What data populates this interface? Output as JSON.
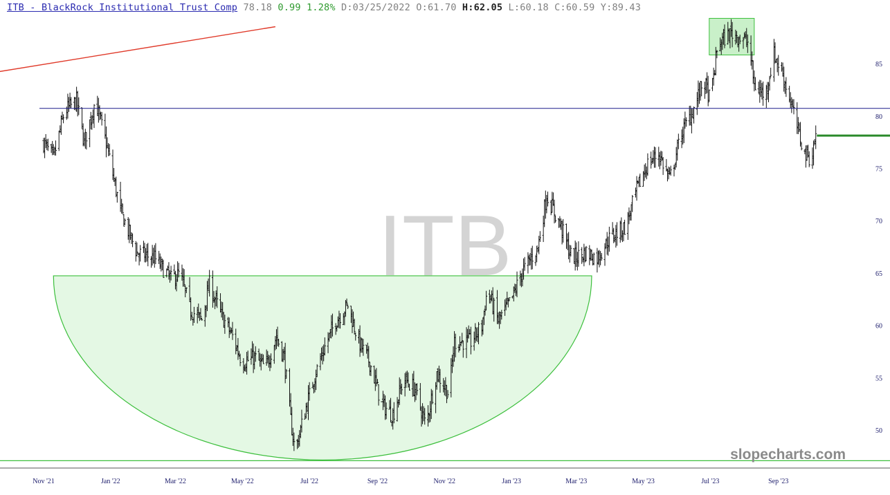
{
  "header": {
    "symbol": "ITB - BlackRock Institutional Trust Comp",
    "last": "78.18",
    "change": "0.99",
    "change_pct": "1.28%",
    "date_label": "D:",
    "date": "03/25/2022",
    "open_label": "O:",
    "open": "61.70",
    "high_label": "H:",
    "high": "62.05",
    "low_label": "L:",
    "low": "60.18",
    "close_label": "C:",
    "close": "60.59",
    "y_label": "Y:",
    "y": "89.43"
  },
  "watermark": "ITB",
  "brand": "slopecharts.com",
  "colors": {
    "bars": "#111111",
    "up_text": "#2e9a2e",
    "symbol_link": "#2a2ab0",
    "resistance_line": "#1a1a8a",
    "trend_line": "#e03a2a",
    "cup_fill": "#e4f8e4",
    "cup_stroke": "#3cbf3c",
    "last_marker": "#2a8a2a",
    "axis_text": "#1a1a6a"
  },
  "chart_data": {
    "type": "ohlc",
    "title": "ITB - BlackRock Institutional Trust Comp",
    "x_ticks": [
      "Nov '21",
      "Jan '22",
      "Mar '22",
      "May '22",
      "Jul '22",
      "Sep '22",
      "Nov '22",
      "Jan '23",
      "Mar '23",
      "May '23",
      "Jul '23",
      "Sep '23"
    ],
    "y_ticks": [
      50,
      55,
      60,
      65,
      70,
      75,
      80,
      85
    ],
    "ylim": [
      46.5,
      89.5
    ],
    "x_range": [
      "2021-11-01",
      "2023-10-31"
    ],
    "price_anchors": [
      [
        "2021-11-01",
        77.5
      ],
      [
        "2021-11-10",
        76.0
      ],
      [
        "2021-11-20",
        80.5
      ],
      [
        "2021-12-01",
        81.5
      ],
      [
        "2021-12-08",
        77.5
      ],
      [
        "2021-12-18",
        81.5
      ],
      [
        "2021-12-28",
        77.5
      ],
      [
        "2022-01-10",
        71.0
      ],
      [
        "2022-01-25",
        67.0
      ],
      [
        "2022-02-10",
        66.5
      ],
      [
        "2022-02-25",
        64.5
      ],
      [
        "2022-03-05",
        65.0
      ],
      [
        "2022-03-15",
        61.5
      ],
      [
        "2022-03-25",
        60.6
      ],
      [
        "2022-04-01",
        64.0
      ],
      [
        "2022-04-12",
        61.0
      ],
      [
        "2022-04-22",
        59.0
      ],
      [
        "2022-05-01",
        56.5
      ],
      [
        "2022-05-12",
        57.0
      ],
      [
        "2022-05-22",
        56.0
      ],
      [
        "2022-06-01",
        59.0
      ],
      [
        "2022-06-08",
        57.0
      ],
      [
        "2022-06-14",
        51.0
      ],
      [
        "2022-06-18",
        48.0
      ],
      [
        "2022-06-25",
        51.0
      ],
      [
        "2022-07-05",
        55.0
      ],
      [
        "2022-07-15",
        58.0
      ],
      [
        "2022-07-25",
        60.5
      ],
      [
        "2022-08-05",
        62.0
      ],
      [
        "2022-08-15",
        58.5
      ],
      [
        "2022-08-25",
        56.5
      ],
      [
        "2022-09-05",
        52.5
      ],
      [
        "2022-09-15",
        51.5
      ],
      [
        "2022-09-25",
        55.0
      ],
      [
        "2022-10-05",
        54.0
      ],
      [
        "2022-10-15",
        50.5
      ],
      [
        "2022-10-25",
        55.5
      ],
      [
        "2022-11-05",
        53.5
      ],
      [
        "2022-11-10",
        58.5
      ],
      [
        "2022-11-25",
        58.5
      ],
      [
        "2022-12-05",
        60.0
      ],
      [
        "2022-12-10",
        63.5
      ],
      [
        "2022-12-20",
        60.5
      ],
      [
        "2023-01-01",
        62.5
      ],
      [
        "2023-01-10",
        65.0
      ],
      [
        "2023-01-25",
        67.5
      ],
      [
        "2023-02-02",
        72.5
      ],
      [
        "2023-02-15",
        69.5
      ],
      [
        "2023-02-25",
        66.5
      ],
      [
        "2023-03-10",
        67.0
      ],
      [
        "2023-03-20",
        66.5
      ],
      [
        "2023-04-01",
        68.5
      ],
      [
        "2023-04-15",
        69.5
      ],
      [
        "2023-04-25",
        73.0
      ],
      [
        "2023-05-05",
        75.5
      ],
      [
        "2023-05-15",
        76.5
      ],
      [
        "2023-05-25",
        74.0
      ],
      [
        "2023-06-05",
        78.5
      ],
      [
        "2023-06-15",
        80.5
      ],
      [
        "2023-06-25",
        83.5
      ],
      [
        "2023-07-01",
        81.5
      ],
      [
        "2023-07-08",
        87.0
      ],
      [
        "2023-07-20",
        88.0
      ],
      [
        "2023-07-30",
        87.5
      ],
      [
        "2023-08-05",
        87.0
      ],
      [
        "2023-08-10",
        83.0
      ],
      [
        "2023-08-20",
        82.0
      ],
      [
        "2023-08-28",
        86.0
      ],
      [
        "2023-09-05",
        84.0
      ],
      [
        "2023-09-12",
        81.5
      ],
      [
        "2023-09-18",
        79.0
      ],
      [
        "2023-09-25",
        76.5
      ],
      [
        "2023-10-01",
        76.0
      ],
      [
        "2023-10-05",
        78.2
      ]
    ],
    "resistance_line": {
      "y": 80.8,
      "x_range": [
        "2021-11-01",
        "2023-10-31"
      ]
    },
    "trend_line": {
      "from": [
        "2021-09-15",
        84.2
      ],
      "to": [
        "2022-05-31",
        88.6
      ]
    },
    "cup_pattern": {
      "rim_y": 64.8,
      "bottom_y": 47.2,
      "x_range": [
        "2021-11-10",
        "2023-03-15"
      ]
    },
    "handle_box": {
      "x_range": [
        "2023-06-30",
        "2023-08-10"
      ],
      "y_range": [
        85.9,
        89.4
      ]
    },
    "last_marker": {
      "y": 78.2,
      "x_range": [
        "2023-10-06",
        "2023-10-31"
      ]
    }
  }
}
